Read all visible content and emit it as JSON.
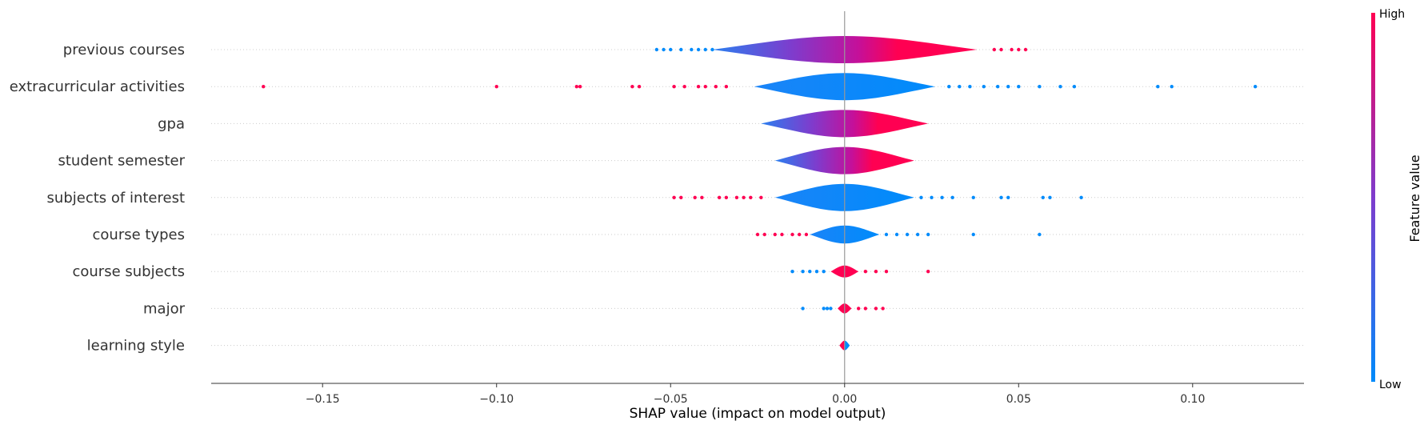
{
  "chart_data": {
    "type": "violin",
    "xlabel": "SHAP value (impact on model output)",
    "xlim": [
      -0.182,
      0.132
    ],
    "x_ticks": [
      "−0.15",
      "−0.10",
      "−0.05",
      "0.00",
      "0.05",
      "0.10"
    ],
    "x_tick_values": [
      -0.15,
      -0.1,
      -0.05,
      0.0,
      0.05,
      0.1
    ],
    "colorbar": {
      "label": "Feature value",
      "high_label": "High",
      "low_label": "Low",
      "high_color": "#ff0052",
      "mid_color": "#7e3ccd",
      "low_color": "#008bfb"
    },
    "features": [
      {
        "name": "previous courses",
        "min": -0.054,
        "max": 0.052,
        "spread": 0.038,
        "low_points": [
          -0.054,
          -0.052,
          -0.05,
          -0.047,
          -0.044,
          -0.042,
          -0.04,
          -0.038
        ],
        "high_points": [
          0.043,
          0.045,
          0.048,
          0.05,
          0.052
        ],
        "gradient": "low-to-high"
      },
      {
        "name": "extracurricular activities",
        "min": -0.167,
        "max": 0.118,
        "spread": 0.026,
        "low_points": [
          0.03,
          0.033,
          0.036,
          0.04,
          0.044,
          0.047,
          0.05,
          0.056,
          0.062,
          0.066,
          0.09,
          0.094,
          0.118
        ],
        "high_points": [
          -0.167,
          -0.1,
          -0.077,
          -0.076,
          -0.061,
          -0.059,
          -0.049,
          -0.046,
          -0.042,
          -0.04,
          -0.037,
          -0.034
        ],
        "gradient": "blue"
      },
      {
        "name": "gpa",
        "min": -0.024,
        "max": 0.025,
        "spread": 0.024,
        "low_points": [],
        "high_points": [],
        "gradient": "low-to-high"
      },
      {
        "name": "student semester",
        "min": -0.02,
        "max": 0.019,
        "spread": 0.02,
        "low_points": [],
        "high_points": [],
        "gradient": "low-to-high"
      },
      {
        "name": "subjects of interest",
        "min": -0.049,
        "max": 0.068,
        "spread": 0.02,
        "low_points": [
          0.022,
          0.025,
          0.028,
          0.031,
          0.037,
          0.045,
          0.047,
          0.057,
          0.059,
          0.068
        ],
        "high_points": [
          -0.049,
          -0.047,
          -0.043,
          -0.041,
          -0.036,
          -0.034,
          -0.031,
          -0.029,
          -0.027,
          -0.024
        ],
        "gradient": "blue"
      },
      {
        "name": "course types",
        "min": -0.025,
        "max": 0.056,
        "spread": 0.01,
        "low_points": [
          0.012,
          0.015,
          0.018,
          0.021,
          0.024,
          0.037,
          0.056
        ],
        "high_points": [
          -0.025,
          -0.023,
          -0.02,
          -0.018,
          -0.015,
          -0.013,
          -0.011
        ],
        "gradient": "blue"
      },
      {
        "name": "course subjects",
        "min": -0.015,
        "max": 0.024,
        "spread": 0.004,
        "low_points": [
          -0.015,
          -0.012,
          -0.01,
          -0.008,
          -0.006
        ],
        "high_points": [
          0.006,
          0.009,
          0.012,
          0.024
        ],
        "gradient": "red"
      },
      {
        "name": "major",
        "min": -0.012,
        "max": 0.011,
        "spread": 0.002,
        "low_points": [
          -0.012,
          -0.006,
          -0.005,
          -0.004
        ],
        "high_points": [
          0.004,
          0.006,
          0.009,
          0.011
        ],
        "gradient": "red"
      },
      {
        "name": "learning style",
        "min": -0.002,
        "max": 0.002,
        "spread": 0.0015,
        "low_points": [],
        "high_points": [],
        "gradient": "red-left-blue-right"
      }
    ]
  }
}
